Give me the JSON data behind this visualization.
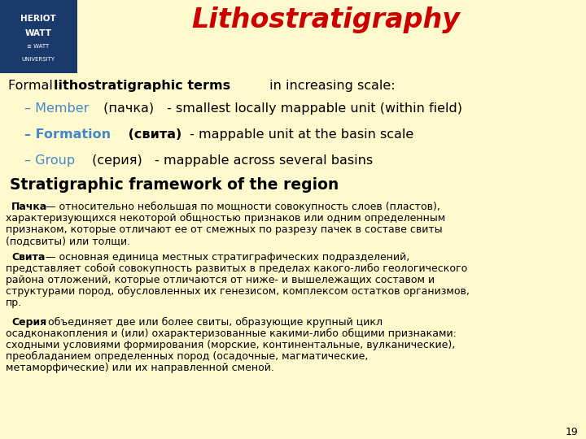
{
  "bg_color": "#FFFACD",
  "header_bg": "#1a3a6b",
  "title": "Lithostratigraphy",
  "title_color": "#cc0000",
  "title_fontsize": 24,
  "keyword_color": "#4488cc",
  "body_fontsize": 9.0,
  "bullet_fontsize": 11.5,
  "subtitle_fontsize": 11.5,
  "section_fontsize": 13.5,
  "page_number": "19",
  "para1_bold": "Пачка",
  "para1_line1": " — относительно небольшая по мощности совокупность слоев (пластов),",
  "para1_line2": "характеризующихся некоторой общностью признаков или одним определенным",
  "para1_line3": "признаком, которые отличают ее от смежных по разрезу пачек в составе свиты",
  "para1_line4": "(подсвиты) или толщи.",
  "para2_bold": "Свита",
  "para2_line1": " — основная единица местных стратиграфических подразделений,",
  "para2_line2": "представляет собой совокупность развитых в пределах какого-либо геологического",
  "para2_line3": "района отложений, которые отличаются от ниже- и вышележащих составом и",
  "para2_line4": "структурами пород, обусловленных их генезисом, комплексом остатков организмов,",
  "para2_line5": "пр.",
  "para3_bold": "Серия",
  "para3_line1": " объединяет две или более свиты, образующие крупный цикл",
  "para3_line2": "осадконакопления и (или) охарактеризованные какими-либо общими признаками:",
  "para3_line3": "сходными условиями формирования (морские, континентальные, вулканические),",
  "para3_line4": "преобладанием определенных пород (осадочные, магматические,",
  "para3_line5": "метаморфические) или их направленной сменой."
}
